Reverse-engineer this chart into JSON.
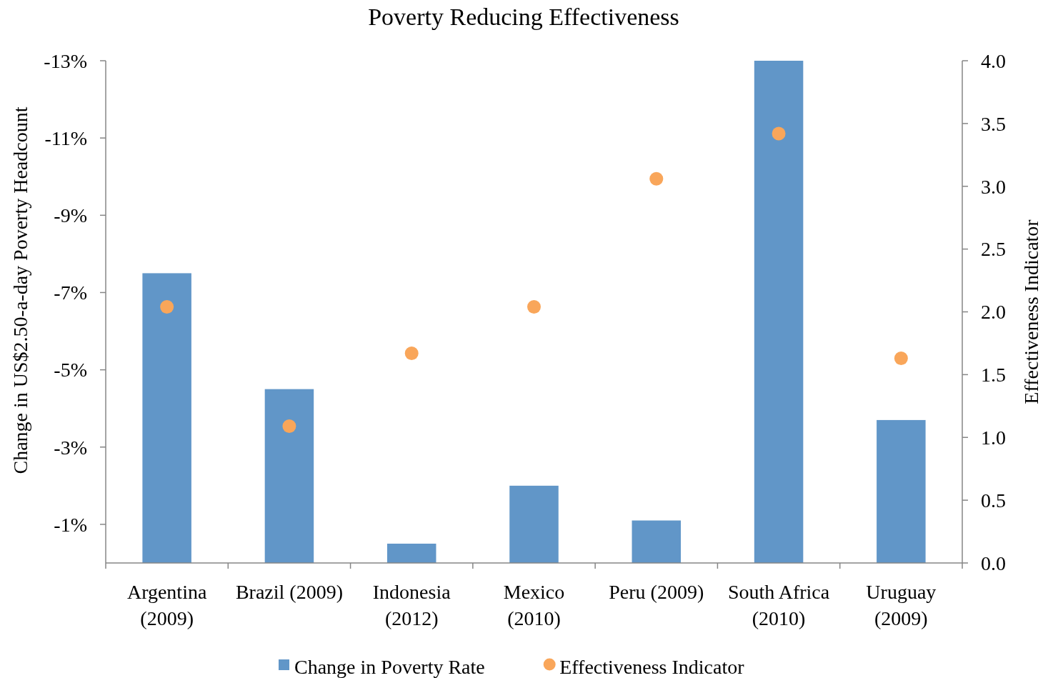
{
  "chart_data": {
    "type": "bar",
    "title": "Poverty Reducing Effectiveness",
    "ylabel": "Change in US$2.50-a-day Poverty Headcount",
    "y2label": "Effectiveness Indicator",
    "categories": [
      "Argentina (2009)",
      "Brazil (2009)",
      "Indonesia (2012)",
      "Mexico (2010)",
      "Peru (2009)",
      "South Africa (2010)",
      "Uruguay (2009)"
    ],
    "series": [
      {
        "name": "Change in Poverty Rate",
        "color": "#6196c8",
        "values": [
          -7.5,
          -4.5,
          -0.5,
          -2.0,
          -1.1,
          -13.0,
          -3.7
        ]
      },
      {
        "name": "Effectiveness Indicator",
        "type": "scatter",
        "axis": "y2",
        "color": "#f9a65a",
        "marker": "circle",
        "values": [
          2.04,
          1.09,
          1.67,
          2.04,
          3.06,
          3.42,
          1.63
        ]
      }
    ],
    "ylim": [
      0,
      -13
    ],
    "yticks": [
      {
        "value": -13,
        "label": "-13%"
      },
      {
        "value": -11,
        "label": "-11%"
      },
      {
        "value": -9,
        "label": "-9%"
      },
      {
        "value": -7,
        "label": "-7%"
      },
      {
        "value": -5,
        "label": "-5%"
      },
      {
        "value": -3,
        "label": "-3%"
      },
      {
        "value": -1,
        "label": "-1%"
      }
    ],
    "y2lim": [
      0,
      4
    ],
    "y2ticks": [
      {
        "value": 0,
        "label": "0.0"
      },
      {
        "value": 0.5,
        "label": "0.5"
      },
      {
        "value": 1,
        "label": "1.0"
      },
      {
        "value": 1.5,
        "label": "1.5"
      },
      {
        "value": 2,
        "label": "2.0"
      },
      {
        "value": 2.5,
        "label": "2.5"
      },
      {
        "value": 3,
        "label": "3.0"
      },
      {
        "value": 3.5,
        "label": "3.5"
      },
      {
        "value": 4,
        "label": "4.0"
      }
    ],
    "grid": false,
    "legend": "bottom"
  }
}
